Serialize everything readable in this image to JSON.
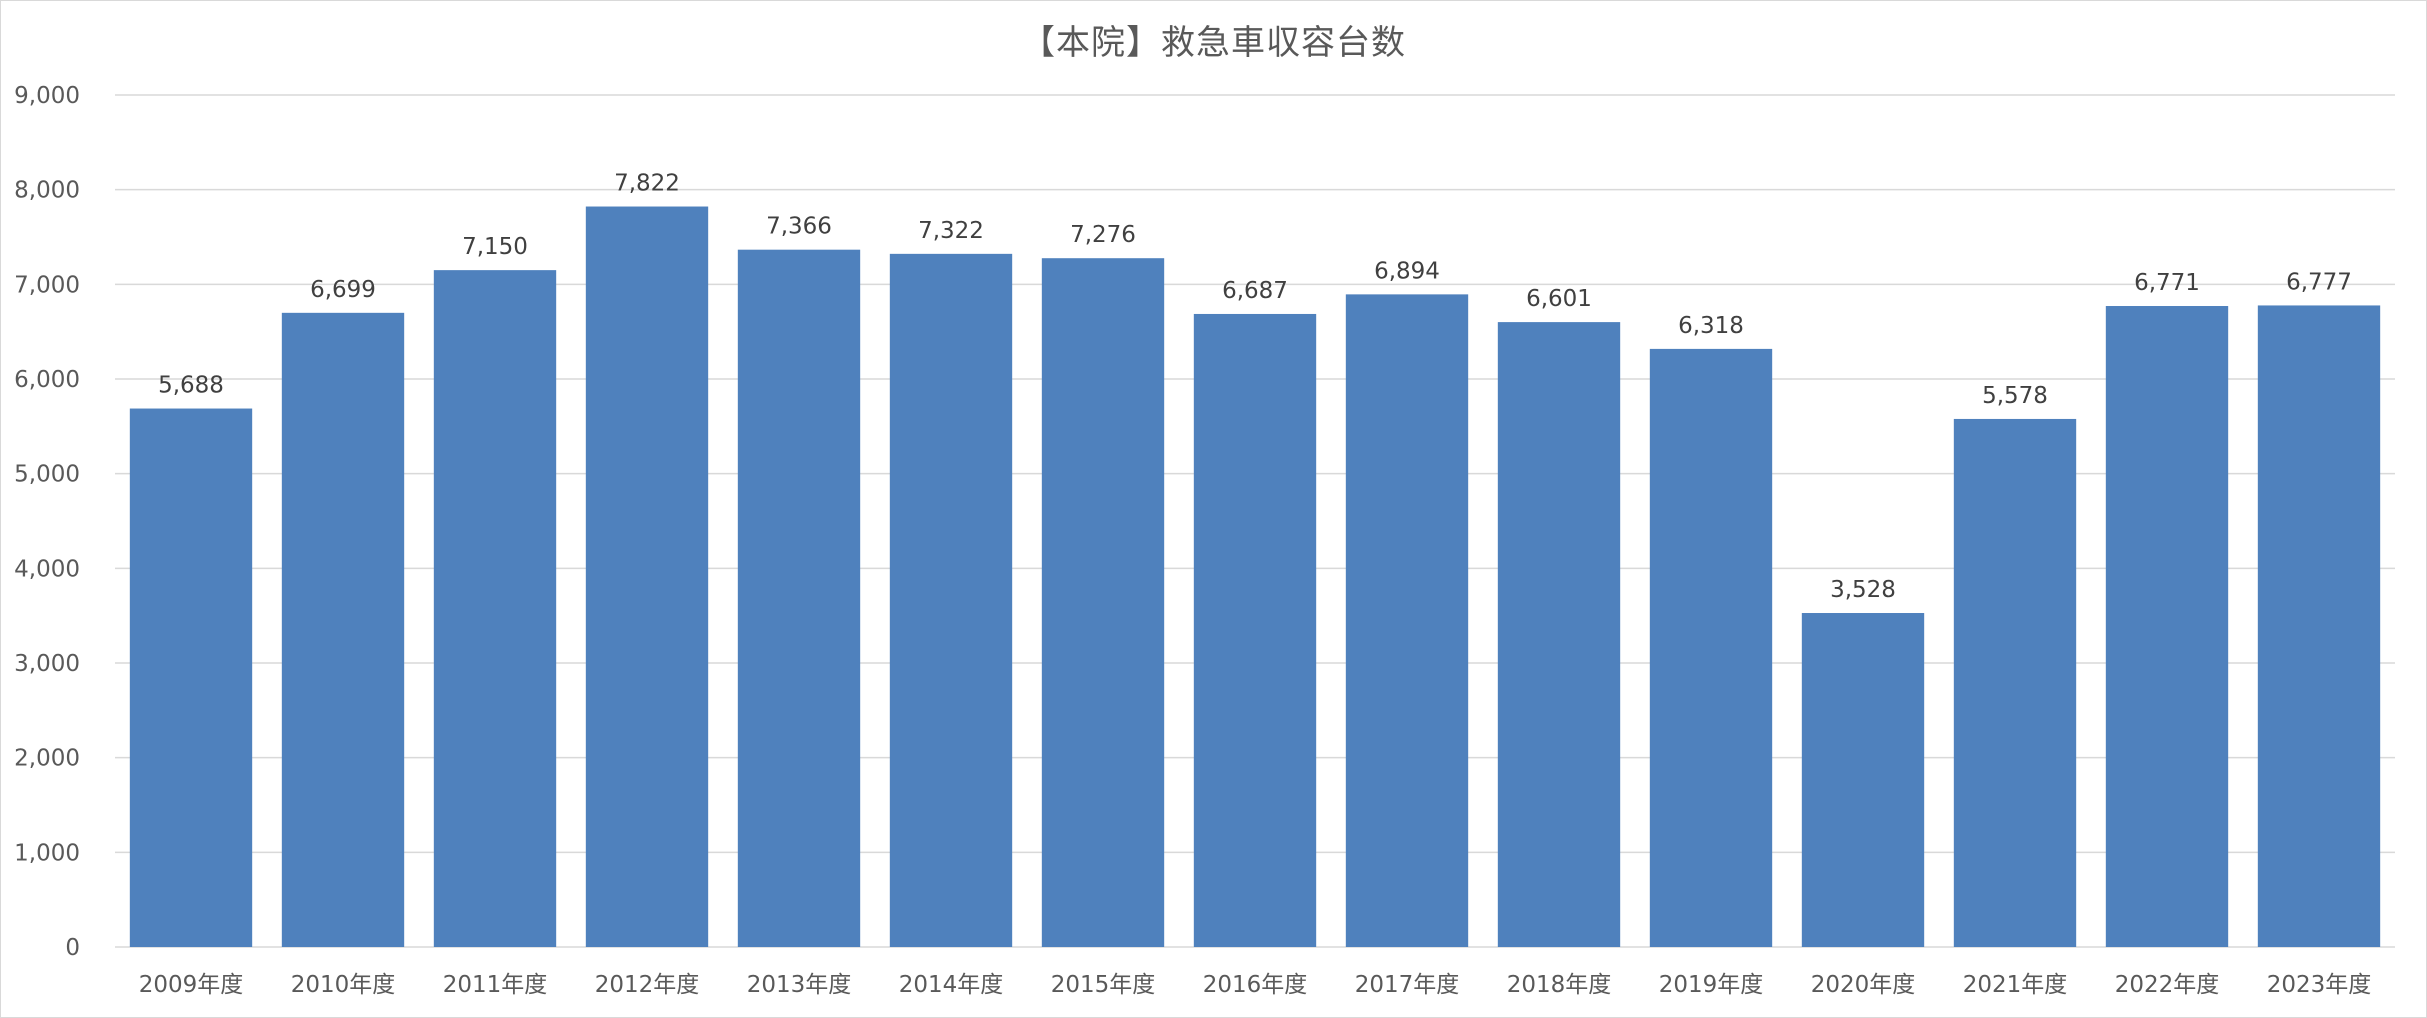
{
  "chart_data": {
    "type": "bar",
    "title": "【本院】救急車収容台数",
    "xlabel": "",
    "ylabel": "",
    "categories": [
      "2009年度",
      "2010年度",
      "2011年度",
      "2012年度",
      "2013年度",
      "2014年度",
      "2015年度",
      "2016年度",
      "2017年度",
      "2018年度",
      "2019年度",
      "2020年度",
      "2021年度",
      "2022年度",
      "2023年度"
    ],
    "series": [
      {
        "values": [
          5688,
          6699,
          7150,
          7822,
          7366,
          7322,
          7276,
          6687,
          6894,
          6601,
          6318,
          3528,
          5578,
          6771,
          6777
        ],
        "value_labels": [
          "5,688",
          "6,699",
          "7,150",
          "7,822",
          "7,366",
          "7,322",
          "7,276",
          "6,687",
          "6,894",
          "6,601",
          "6,318",
          "3,528",
          "5,578",
          "6,771",
          "6,777"
        ],
        "color": "#4f81bd"
      }
    ],
    "ylim": [
      0,
      9000
    ],
    "yticks": [
      0,
      1000,
      2000,
      3000,
      4000,
      5000,
      6000,
      7000,
      8000,
      9000
    ],
    "ytick_labels": [
      "0",
      "1,000",
      "2,000",
      "3,000",
      "4,000",
      "5,000",
      "6,000",
      "7,000",
      "8,000",
      "9,000"
    ],
    "grid": true,
    "legend": "none",
    "colors": {
      "bar": "#4f81bd",
      "gridline": "#d9d9d9",
      "axis_text": "#595959",
      "title_text": "#595959"
    }
  }
}
